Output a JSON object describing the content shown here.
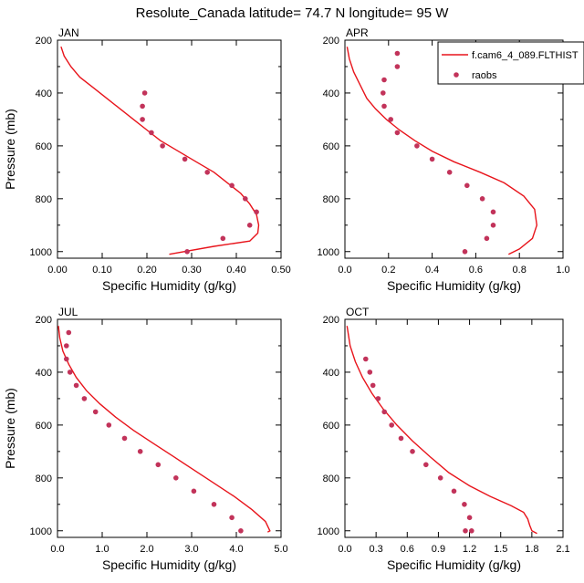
{
  "title": "Resolute_Canada  latitude= 74.7 N longitude= 95 W",
  "legend": {
    "model_label": "f.cam6_4_089.FLTHIST",
    "obs_label": "raobs"
  },
  "colors": {
    "model": "#e8141b",
    "obs": "#c2335a"
  },
  "chart_data": [
    {
      "type": "line",
      "panel": "JAN",
      "xlabel": "Specific Humidity (g/kg)",
      "ylabel": "Pressure (mb)",
      "xlim": [
        0,
        0.5
      ],
      "ylim": [
        200,
        1025
      ],
      "y_inverted": true,
      "xticks": [
        "0.00",
        "0.10",
        "0.20",
        "0.30",
        "0.40",
        "0.50"
      ],
      "xtick_values": [
        0,
        0.1,
        0.2,
        0.3,
        0.4,
        0.5
      ],
      "yticks": [
        200,
        400,
        600,
        800,
        1000
      ],
      "model": {
        "name": "f.cam6_4_089.FLTHIST",
        "q": [
          0.008,
          0.015,
          0.03,
          0.05,
          0.08,
          0.11,
          0.14,
          0.17,
          0.2,
          0.23,
          0.27,
          0.31,
          0.35,
          0.38,
          0.41,
          0.43,
          0.445,
          0.45,
          0.448,
          0.43,
          0.35,
          0.25
        ],
        "p": [
          225,
          260,
          300,
          340,
          380,
          420,
          460,
          500,
          540,
          580,
          620,
          660,
          700,
          740,
          780,
          820,
          860,
          900,
          930,
          960,
          980,
          1010
        ]
      },
      "obs": {
        "name": "raobs",
        "q": [
          0.195,
          0.19,
          0.19,
          0.21,
          0.235,
          0.285,
          0.335,
          0.39,
          0.42,
          0.445,
          0.43,
          0.37,
          0.29
        ],
        "p": [
          400,
          450,
          500,
          550,
          600,
          650,
          700,
          750,
          800,
          850,
          900,
          950,
          1000
        ]
      }
    },
    {
      "type": "line",
      "panel": "APR",
      "xlabel": "Specific Humidity (g/kg)",
      "ylabel": "",
      "xlim": [
        0,
        1.0
      ],
      "ylim": [
        200,
        1025
      ],
      "y_inverted": true,
      "xticks": [
        "0.0",
        "0.2",
        "0.4",
        "0.6",
        "0.8",
        "1.0"
      ],
      "xtick_values": [
        0,
        0.2,
        0.4,
        0.6,
        0.8,
        1.0
      ],
      "yticks": [
        200,
        400,
        600,
        800,
        1000
      ],
      "model": {
        "name": "f.cam6_4_089.FLTHIST",
        "q": [
          0.01,
          0.02,
          0.04,
          0.07,
          0.1,
          0.14,
          0.19,
          0.25,
          0.32,
          0.4,
          0.5,
          0.62,
          0.73,
          0.82,
          0.87,
          0.88,
          0.86,
          0.8,
          0.75
        ],
        "p": [
          225,
          270,
          320,
          370,
          420,
          460,
          500,
          540,
          580,
          620,
          660,
          700,
          740,
          790,
          840,
          900,
          950,
          990,
          1010
        ]
      },
      "obs": {
        "name": "raobs",
        "q": [
          0.24,
          0.24,
          0.18,
          0.175,
          0.18,
          0.21,
          0.24,
          0.33,
          0.4,
          0.48,
          0.56,
          0.63,
          0.68,
          0.68,
          0.65,
          0.55
        ],
        "p": [
          250,
          300,
          350,
          400,
          450,
          500,
          550,
          600,
          650,
          700,
          750,
          800,
          850,
          900,
          950,
          1000
        ]
      }
    },
    {
      "type": "line",
      "panel": "JUL",
      "xlabel": "Specific Humidity (g/kg)",
      "ylabel": "Pressure (mb)",
      "xlim": [
        0,
        5.0
      ],
      "ylim": [
        200,
        1025
      ],
      "y_inverted": true,
      "xticks": [
        "0.0",
        "1.0",
        "2.0",
        "3.0",
        "4.0",
        "5.0"
      ],
      "xtick_values": [
        0,
        1,
        2,
        3,
        4,
        5
      ],
      "yticks": [
        200,
        400,
        600,
        800,
        1000
      ],
      "model": {
        "name": "f.cam6_4_089.FLTHIST",
        "q": [
          0.02,
          0.05,
          0.12,
          0.25,
          0.42,
          0.65,
          0.95,
          1.3,
          1.7,
          2.15,
          2.6,
          3.05,
          3.5,
          3.95,
          4.35,
          4.65,
          4.75,
          4.7
        ],
        "p": [
          225,
          270,
          320,
          370,
          420,
          470,
          520,
          570,
          620,
          670,
          720,
          770,
          820,
          870,
          920,
          965,
          1000,
          1005
        ]
      },
      "obs": {
        "name": "raobs",
        "q": [
          0.25,
          0.2,
          0.2,
          0.28,
          0.42,
          0.6,
          0.85,
          1.15,
          1.5,
          1.85,
          2.25,
          2.65,
          3.05,
          3.5,
          3.9,
          4.1
        ],
        "p": [
          250,
          300,
          350,
          400,
          450,
          500,
          550,
          600,
          650,
          700,
          750,
          800,
          850,
          900,
          950,
          1000
        ]
      }
    },
    {
      "type": "line",
      "panel": "OCT",
      "xlabel": "Specific Humidity (g/kg)",
      "ylabel": "",
      "xlim": [
        0,
        2.1
      ],
      "ylim": [
        200,
        1025
      ],
      "y_inverted": true,
      "xticks": [
        "0.0",
        "0.3",
        "0.6",
        "0.9",
        "1.2",
        "1.5",
        "1.8",
        "2.1"
      ],
      "xtick_values": [
        0,
        0.3,
        0.6,
        0.9,
        1.2,
        1.5,
        1.8,
        2.1
      ],
      "yticks": [
        200,
        400,
        600,
        800,
        1000
      ],
      "model": {
        "name": "f.cam6_4_089.FLTHIST",
        "q": [
          0.02,
          0.05,
          0.1,
          0.17,
          0.26,
          0.37,
          0.5,
          0.65,
          0.82,
          1.0,
          1.2,
          1.4,
          1.6,
          1.72,
          1.76,
          1.78,
          1.8,
          1.85
        ],
        "p": [
          225,
          300,
          360,
          420,
          480,
          540,
          600,
          660,
          720,
          780,
          830,
          870,
          905,
          930,
          955,
          980,
          1000,
          1010
        ]
      },
      "obs": {
        "name": "raobs",
        "q": [
          0.2,
          0.24,
          0.27,
          0.32,
          0.38,
          0.45,
          0.54,
          0.65,
          0.78,
          0.92,
          1.05,
          1.15,
          1.2,
          1.22,
          1.16
        ],
        "p": [
          350,
          400,
          450,
          500,
          550,
          600,
          650,
          700,
          750,
          800,
          850,
          900,
          950,
          1000,
          1000
        ]
      }
    }
  ]
}
